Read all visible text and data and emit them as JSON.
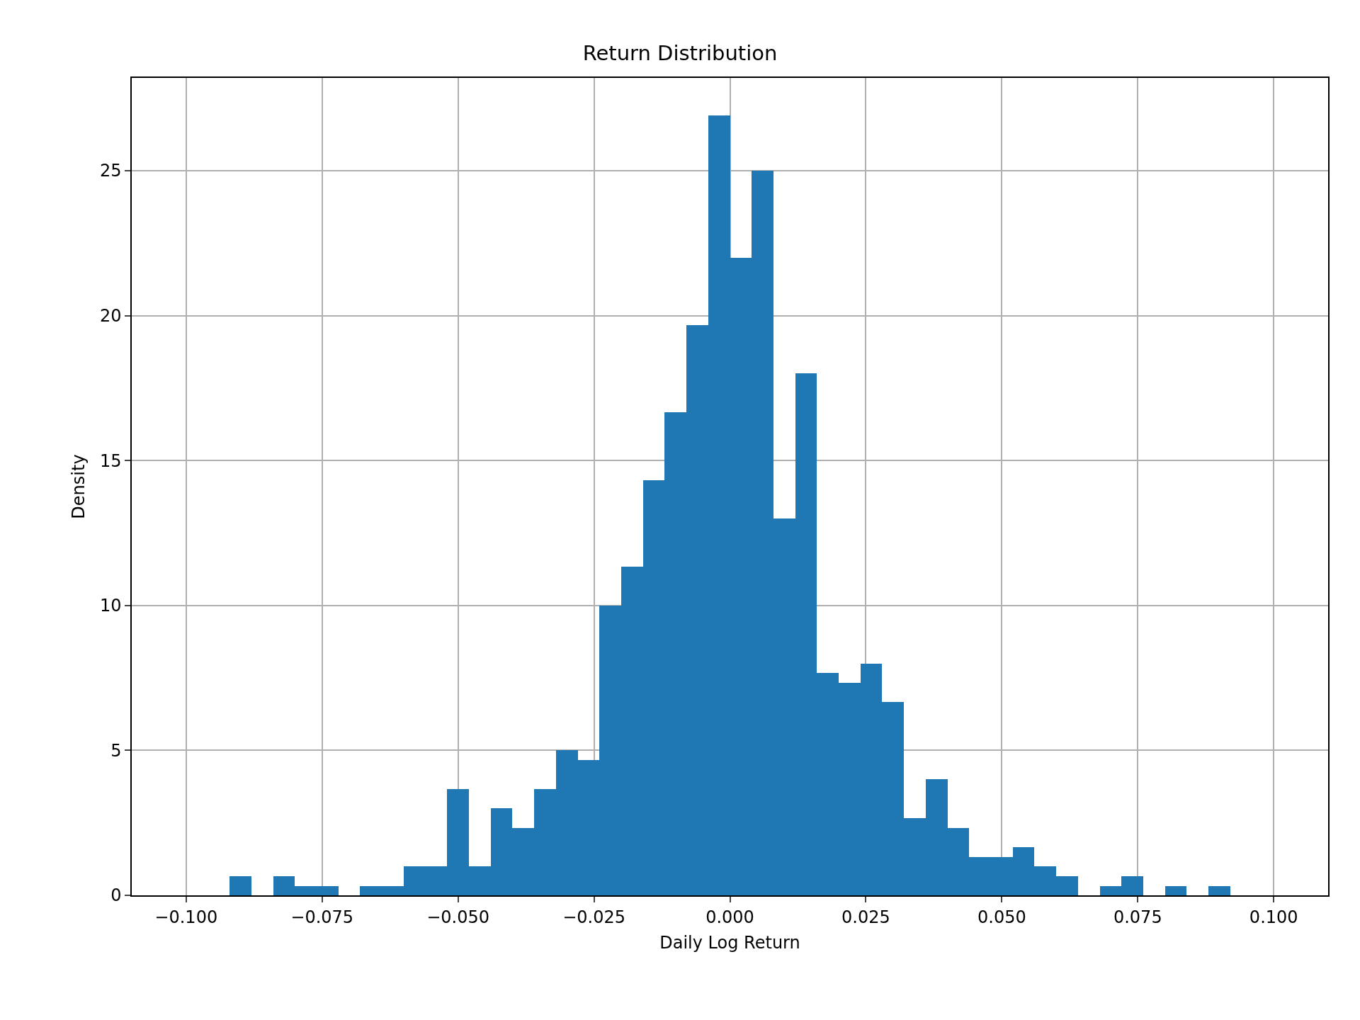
{
  "chart_data": {
    "type": "histogram",
    "title": "Return Distribution",
    "xlabel": "Daily Log Return",
    "ylabel": "Density",
    "bins": [
      -0.1,
      -0.096,
      -0.092,
      -0.088,
      -0.084,
      -0.08,
      -0.076,
      -0.072,
      -0.068,
      -0.064,
      -0.06,
      -0.056,
      -0.052,
      -0.048,
      -0.044,
      -0.04,
      -0.036,
      -0.032,
      -0.028,
      -0.024,
      -0.02,
      -0.016,
      -0.012,
      -0.008,
      -0.004,
      0,
      0.004,
      0.008,
      0.012,
      0.016,
      0.02,
      0.024,
      0.028,
      0.032,
      0.036,
      0.04,
      0.044,
      0.048,
      0.052,
      0.056,
      0.06,
      0.064,
      0.068,
      0.072,
      0.076,
      0.08,
      0.084,
      0.088,
      0.092,
      0.096,
      0.1
    ],
    "values": [
      0,
      0,
      0.67,
      0,
      0.67,
      0.33,
      0.33,
      0,
      0.33,
      0.33,
      1.0,
      1.0,
      3.67,
      1.0,
      3.0,
      2.33,
      3.67,
      5.0,
      4.67,
      10.0,
      11.33,
      14.33,
      16.67,
      19.67,
      26.9,
      22.0,
      25.0,
      13.0,
      18.0,
      7.67,
      7.33,
      8.0,
      6.67,
      2.67,
      4.0,
      2.33,
      1.33,
      1.33,
      1.67,
      1.0,
      0.67,
      0,
      0.33,
      0.67,
      0,
      0.33,
      0,
      0.33,
      0,
      0
    ],
    "color": "#1f77b4",
    "xlim": [
      -0.11,
      0.11
    ],
    "xticks": [
      {
        "value": -0.1,
        "label": "−0.100"
      },
      {
        "value": -0.075,
        "label": "−0.075"
      },
      {
        "value": -0.05,
        "label": "−0.050"
      },
      {
        "value": -0.025,
        "label": "−0.025"
      },
      {
        "value": 0,
        "label": "0.000"
      },
      {
        "value": 0.025,
        "label": "0.025"
      },
      {
        "value": 0.05,
        "label": "0.050"
      },
      {
        "value": 0.075,
        "label": "0.075"
      },
      {
        "value": 0.1,
        "label": "0.100"
      }
    ],
    "ylim": [
      0,
      28.2
    ],
    "yticks": [
      0,
      5,
      10,
      15,
      20,
      25
    ],
    "grid": true
  }
}
